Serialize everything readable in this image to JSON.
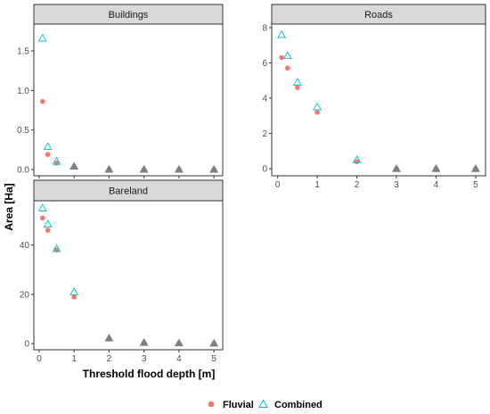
{
  "colors": {
    "fluvial": "#F8766D",
    "combined": "#00BFC4",
    "overlap": "#7F7F7F"
  },
  "axes": {
    "xlabel": "Threshold flood depth [m]",
    "ylabel": "Area [Ha]"
  },
  "legend": {
    "position": "bottom",
    "items": [
      "Fluvial",
      "Combined"
    ]
  },
  "chart_data": [
    {
      "type": "scatter",
      "panel": "Buildings",
      "title": "Buildings",
      "x": [
        0.1,
        0.25,
        0.5,
        1,
        2,
        3,
        4,
        5
      ],
      "xlim": [
        -0.15,
        5.25
      ],
      "xticks": [
        0,
        1,
        2,
        3,
        4,
        5
      ],
      "ylim": [
        -0.08,
        1.84
      ],
      "yticks": [
        0.0,
        0.5,
        1.0,
        1.5
      ],
      "ytick_labels": [
        "0.0",
        "0.5",
        "1.0",
        "1.5"
      ],
      "series": [
        {
          "name": "Fluvial",
          "values": [
            0.86,
            0.19,
            0.08,
            0.03,
            0.0,
            0.0,
            0.0,
            0.0
          ]
        },
        {
          "name": "Combined",
          "values": [
            1.66,
            0.29,
            0.1,
            0.04,
            0.0,
            0.0,
            0.0,
            0.0
          ]
        }
      ]
    },
    {
      "type": "scatter",
      "panel": "Roads",
      "title": "Roads",
      "x": [
        0.1,
        0.25,
        0.5,
        1,
        2,
        3,
        4,
        5
      ],
      "xlim": [
        -0.15,
        5.25
      ],
      "xticks": [
        0,
        1,
        2,
        3,
        4,
        5
      ],
      "ylim": [
        -0.4,
        8.2
      ],
      "yticks": [
        0,
        2,
        4,
        6,
        8
      ],
      "ytick_labels": [
        "0",
        "2",
        "4",
        "6",
        "8"
      ],
      "series": [
        {
          "name": "Fluvial",
          "values": [
            6.3,
            5.7,
            4.6,
            3.2,
            0.4,
            0.0,
            0.0,
            0.0
          ]
        },
        {
          "name": "Combined",
          "values": [
            7.6,
            6.4,
            4.9,
            3.5,
            0.5,
            0.0,
            0.0,
            0.0
          ]
        }
      ]
    },
    {
      "type": "scatter",
      "panel": "Bareland",
      "title": "Bareland",
      "x": [
        0.1,
        0.25,
        0.5,
        1,
        2,
        3,
        4,
        5
      ],
      "xlim": [
        -0.15,
        5.25
      ],
      "xticks": [
        0,
        1,
        2,
        3,
        4,
        5
      ],
      "ylim": [
        -2.5,
        58.0
      ],
      "yticks": [
        0,
        20,
        40
      ],
      "ytick_labels": [
        "0",
        "20",
        "40"
      ],
      "series": [
        {
          "name": "Fluvial",
          "values": [
            51,
            46,
            38,
            19,
            2,
            0.3,
            0.1,
            0.1
          ]
        },
        {
          "name": "Combined",
          "values": [
            55,
            48.5,
            38.5,
            21,
            2.2,
            0.4,
            0.2,
            0.1
          ]
        }
      ]
    }
  ]
}
